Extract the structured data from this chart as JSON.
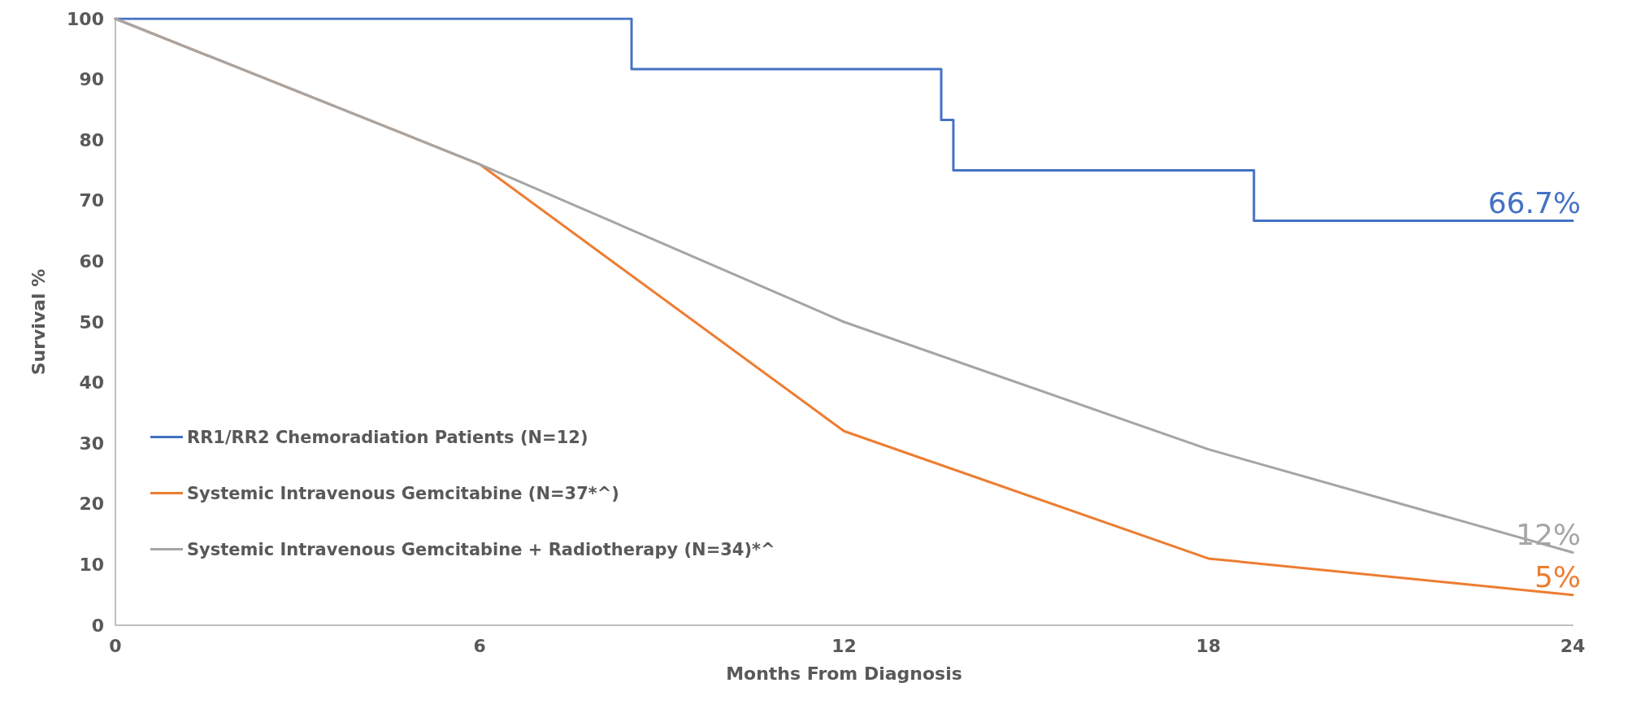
{
  "chart_data": {
    "type": "line",
    "xlabel": "Months From Diagnosis",
    "ylabel": "Survival %",
    "xlim": [
      0,
      24
    ],
    "xticks": [
      0,
      6,
      12,
      18,
      24
    ],
    "ylim": [
      0,
      100
    ],
    "yticks": [
      0,
      10,
      20,
      30,
      40,
      50,
      60,
      70,
      80,
      90,
      100
    ],
    "grid": false,
    "legend": "left",
    "marker": "none",
    "line_style": "solid",
    "series": [
      {
        "name": "RR1/RR2 Chemoradiation Patients (N=12)",
        "type": "step",
        "color": "#4472c4",
        "x": [
          0,
          8.5,
          13.6,
          13.8,
          18.75,
          24
        ],
        "values": [
          100,
          91.7,
          83.3,
          75,
          66.7,
          66.7
        ],
        "value_labels": [
          null,
          null,
          null,
          null,
          null,
          "66.7%"
        ]
      },
      {
        "name": "Systemic Intravenous Gemcitabine (N=37*^)",
        "color": "#ed7d31",
        "x": [
          0,
          6,
          12,
          18,
          24
        ],
        "values": [
          100,
          76,
          32,
          11,
          5
        ],
        "value_labels": [
          null,
          null,
          null,
          null,
          "5%"
        ]
      },
      {
        "name": "Systemic Intravenous Gemcitabine + Radiotherapy (N=34)*^",
        "color": "#a5a5a5",
        "x": [
          0,
          6,
          12,
          18,
          24
        ],
        "values": [
          100,
          76,
          50,
          29,
          12
        ],
        "value_labels": [
          null,
          null,
          null,
          null,
          "12%"
        ]
      }
    ]
  }
}
